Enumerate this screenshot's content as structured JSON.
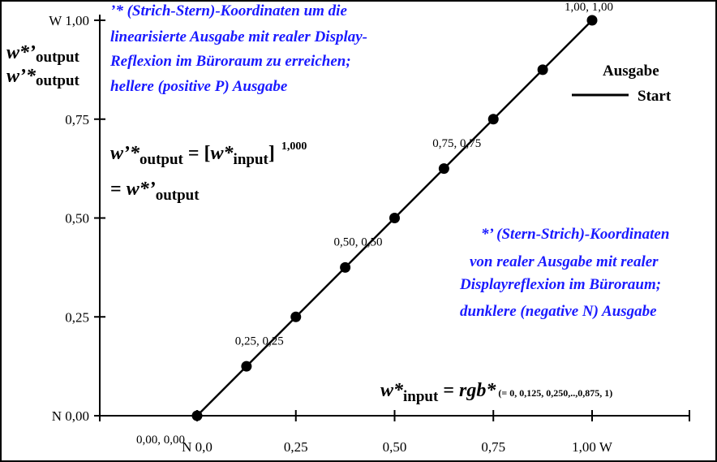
{
  "chart_data": {
    "type": "line",
    "x": [
      0,
      0.125,
      0.25,
      0.375,
      0.5,
      0.625,
      0.75,
      0.875,
      1.0
    ],
    "series": [
      {
        "name": "Start",
        "values": [
          0,
          0.125,
          0.25,
          0.375,
          0.5,
          0.625,
          0.75,
          0.875,
          1.0
        ]
      }
    ],
    "xlim": [
      -0.5,
      1.5
    ],
    "ylim": [
      0,
      1.0
    ],
    "x_tick_values": [
      0,
      0.25,
      0.5,
      0.75,
      1.0
    ],
    "x_tick_labels": [
      "N  0,0",
      "0,25",
      "0,50",
      "0,75",
      "1,00  W"
    ],
    "y_tick_values": [
      0,
      0.25,
      0.5,
      0.75,
      1.0
    ],
    "y_tick_labels": [
      "N 0,00",
      "0,25",
      "0,50",
      "0,75",
      "W 1,00"
    ],
    "point_labels": [
      {
        "x": 0,
        "y": 0,
        "text": "0,00, 0,00"
      },
      {
        "x": 0.25,
        "y": 0.25,
        "text": "0,25, 0,25"
      },
      {
        "x": 0.5,
        "y": 0.5,
        "text": "0,50, 0,50"
      },
      {
        "x": 0.75,
        "y": 0.75,
        "text": "0,75, 0,75"
      },
      {
        "x": 1.0,
        "y": 1.0,
        "text": "1,00, 1,00"
      }
    ],
    "ylabel": {
      "line1_main": "w*’",
      "line1_sub": "output",
      "line2_main": "w’*",
      "line2_sub": "output"
    },
    "legend": {
      "title": "Ausgabe",
      "entry": "Start",
      "position": "top-right"
    },
    "grid": false
  },
  "annotations": {
    "top_note": [
      "’* (Strich-Stern)-Koordinaten um die",
      "linearisierte Ausgabe mit realer Display-",
      "Reflexion im Büroraum zu erreichen;",
      "hellere (positive P) Ausgabe"
    ],
    "right_note": [
      "*’ (Stern-Strich)-Koordinaten",
      "von realer Ausgabe mit realer",
      "Displayreflexion im Büroraum;",
      "dunklere (negative N) Ausgabe"
    ],
    "blue_color": "#1a1aff"
  },
  "formula": {
    "lhs_main": "w’*",
    "lhs_sub": "output",
    "eq_open": " = [",
    "inner_main": "w*",
    "inner_sub": "input",
    "close": "]",
    "exponent": "1,000",
    "line2_eq": "= ",
    "line2_main": "w*’",
    "line2_sub": "output"
  },
  "input_formula": {
    "main": "w*",
    "sub": "input",
    "eq": " = ",
    "rgb": "rgb*",
    "detail": " (= 0, 0,125, 0,250,..,0,875, 1)"
  }
}
